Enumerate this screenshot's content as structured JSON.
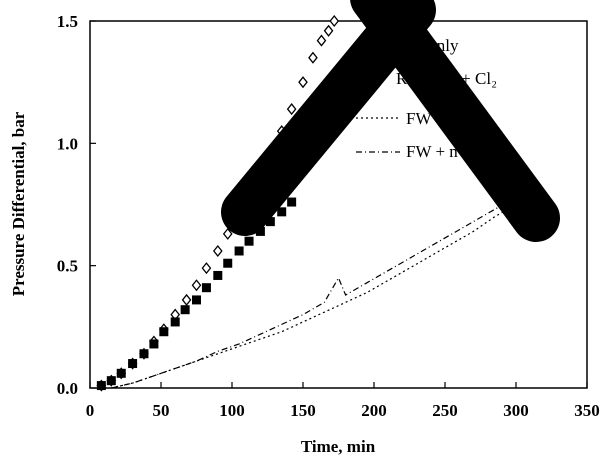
{
  "chart_data": {
    "type": "scatter",
    "xlabel": "Time, min",
    "ylabel": "Pressure Differential, bar",
    "xlim": [
      0,
      350
    ],
    "ylim": [
      0,
      1.5
    ],
    "x_ticks": [
      "0",
      "50",
      "100",
      "150",
      "200",
      "250",
      "300",
      "350"
    ],
    "y_ticks": [
      "0.0",
      "0.5",
      "1.0",
      "1.5"
    ],
    "grid": false,
    "legend_position": "top-right",
    "legend": [
      "V only",
      "R     Fe/Mn + Cl₂",
      "FW",
      "FW +           n + Cl₂"
    ],
    "series": [
      {
        "marker": "diamond-open",
        "color": "#000000",
        "x": [
          8,
          15,
          22,
          30,
          38,
          45,
          52,
          60,
          68,
          75,
          82,
          90,
          97,
          105,
          112,
          120,
          128,
          135,
          142,
          150,
          157,
          163,
          168,
          172
        ],
        "y": [
          0.01,
          0.03,
          0.06,
          0.1,
          0.14,
          0.19,
          0.24,
          0.3,
          0.36,
          0.42,
          0.49,
          0.56,
          0.63,
          0.71,
          0.78,
          0.87,
          0.96,
          1.05,
          1.14,
          1.25,
          1.35,
          1.42,
          1.46,
          1.5
        ]
      },
      {
        "marker": "square-filled",
        "color": "#000000",
        "x": [
          8,
          15,
          22,
          30,
          38,
          45,
          52,
          60,
          67,
          75,
          82,
          90,
          97,
          105,
          112,
          120,
          127,
          135,
          142
        ],
        "y": [
          0.01,
          0.03,
          0.06,
          0.1,
          0.14,
          0.18,
          0.23,
          0.27,
          0.32,
          0.36,
          0.41,
          0.46,
          0.51,
          0.56,
          0.6,
          0.64,
          0.68,
          0.72,
          0.76
        ]
      },
      {
        "marker": "line-dotted",
        "color": "#000000",
        "x": [
          15,
          30,
          45,
          60,
          75,
          90,
          105,
          120,
          135,
          150,
          165,
          180,
          195,
          210,
          225,
          240,
          255,
          270,
          285,
          300
        ],
        "y": [
          0.0,
          0.02,
          0.05,
          0.08,
          0.11,
          0.14,
          0.17,
          0.2,
          0.23,
          0.27,
          0.31,
          0.35,
          0.39,
          0.44,
          0.49,
          0.54,
          0.59,
          0.64,
          0.7,
          0.75
        ]
      },
      {
        "marker": "line-dashdot",
        "color": "#000000",
        "x": [
          15,
          30,
          45,
          60,
          75,
          90,
          105,
          120,
          135,
          150,
          165,
          175,
          180,
          195,
          210,
          225,
          240,
          255,
          270,
          285,
          300
        ],
        "y": [
          0.0,
          0.02,
          0.05,
          0.08,
          0.11,
          0.15,
          0.18,
          0.22,
          0.26,
          0.3,
          0.35,
          0.45,
          0.38,
          0.43,
          0.48,
          0.53,
          0.58,
          0.63,
          0.68,
          0.73,
          0.78
        ]
      }
    ]
  },
  "overlay": {
    "shape": "large black X mark",
    "color": "#000000"
  }
}
